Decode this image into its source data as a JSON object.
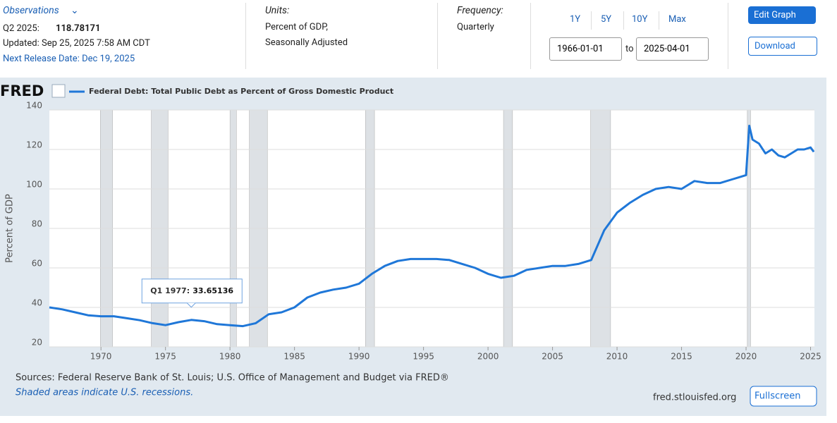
{
  "header": {
    "observations": "Observations",
    "latest_period": "Q2 2025:",
    "latest_value": 118.78171,
    "updated": "Updated: Sep 25, 2025 7:58 AM CDT",
    "next_release": "Next Release Date: Dec 19, 2025",
    "units_label": "Units:",
    "units_line1": "Percent of GDP,",
    "units_line2": "Seasonally Adjusted",
    "frequency_label": "Frequency:",
    "frequency": "Quarterly",
    "ranges": [
      "1Y",
      "5Y",
      "10Y",
      "Max"
    ],
    "start_date": "1966-01-01",
    "to": "to",
    "end_date": "2025-04-01",
    "edit_graph": "Edit Graph",
    "download": "Download"
  },
  "chart_data": {
    "type": "line",
    "logo": "FRED",
    "ylabel": "Percent of GDP",
    "x": [
      1966,
      1967,
      1968,
      1969,
      1970,
      1971,
      1972,
      1973,
      1974,
      1975,
      1976,
      1977,
      1978,
      1979,
      1980,
      1981,
      1982,
      1983,
      1984,
      1985,
      1986,
      1987,
      1988,
      1989,
      1990,
      1991,
      1992,
      1993,
      1994,
      1995,
      1996,
      1997,
      1998,
      1999,
      2000,
      2001,
      2002,
      2003,
      2004,
      2005,
      2006,
      2007,
      2008,
      2009,
      2010,
      2011,
      2012,
      2013,
      2014,
      2015,
      2016,
      2017,
      2018,
      2019,
      2020,
      2020.25,
      2020.5,
      2021,
      2021.5,
      2022,
      2022.5,
      2023,
      2023.5,
      2024,
      2024.5,
      2025,
      2025.25
    ],
    "series": [
      {
        "name": "Federal Debt: Total Public Debt as Percent of Gross Domestic Product",
        "color": "#1f77d8",
        "values": [
          40,
          39,
          37.5,
          36,
          35.5,
          35.5,
          34.5,
          33.5,
          32,
          31,
          32.5,
          33.65136,
          33,
          31.5,
          31,
          30.5,
          32,
          36.5,
          37.5,
          40,
          45,
          47.5,
          49,
          50,
          52,
          57,
          61,
          63.5,
          64.5,
          64.5,
          64.5,
          64,
          62,
          60,
          57,
          55,
          56,
          59,
          60,
          61,
          61,
          62,
          64,
          79,
          88,
          93,
          97,
          100,
          101,
          100,
          104,
          103,
          103,
          105,
          107,
          132,
          125,
          123,
          118,
          120,
          117,
          116,
          118,
          120,
          120,
          121,
          118.78171
        ]
      }
    ],
    "recessions": [
      {
        "start": 1969.95,
        "end": 1970.9
      },
      {
        "start": 1973.9,
        "end": 1975.2
      },
      {
        "start": 1980.0,
        "end": 1980.5
      },
      {
        "start": 1981.5,
        "end": 1982.9
      },
      {
        "start": 1990.5,
        "end": 1991.2
      },
      {
        "start": 2001.2,
        "end": 2001.9
      },
      {
        "start": 2007.95,
        "end": 2009.5
      },
      {
        "start": 2020.1,
        "end": 2020.35
      }
    ],
    "xlim": [
      1966,
      2025.3
    ],
    "xticks": [
      1970,
      1975,
      1980,
      1985,
      1990,
      1995,
      2000,
      2005,
      2010,
      2015,
      2020,
      2025
    ],
    "ylim": [
      20,
      140
    ],
    "yticks": [
      20,
      40,
      60,
      80,
      100,
      120,
      140
    ],
    "grid": true,
    "tooltip": {
      "label": "Q1 1977:",
      "x": 1977,
      "value": 33.65136
    },
    "sources": "Sources: Federal Reserve Bank of St. Louis; U.S. Office of Management and Budget via FRED®",
    "note": "Shaded areas indicate U.S. recessions.",
    "site": "fred.stlouisfed.org",
    "fullscreen": "Fullscreen"
  }
}
